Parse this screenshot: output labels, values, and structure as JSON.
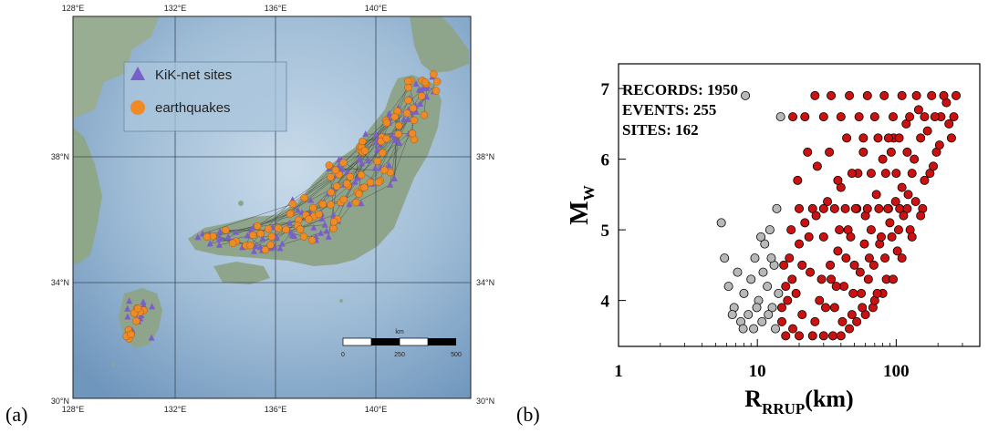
{
  "panel_a": {
    "label": "(a)",
    "lon_ticks_top": [
      "128°E",
      "132°E",
      "136°E",
      "140°E"
    ],
    "lon_ticks_bottom": [
      "128°E",
      "132°E",
      "136°E",
      "140°E"
    ],
    "lat_ticks_left": [
      "38°N",
      "34°N",
      "30°N"
    ],
    "lat_ticks_right": [
      "38°N",
      "34°N",
      "30°N"
    ],
    "legend": {
      "sites_label": "KiK-net sites",
      "quakes_label": "earthquakes"
    },
    "scalebar": {
      "unit": "km",
      "ticks": [
        "0",
        "250",
        "500"
      ]
    },
    "colors": {
      "sea": "#8fb2cf",
      "land": "#8ea58c",
      "sites": "#7b5fc9",
      "quakes": "#f08a24",
      "paths": "#333333"
    }
  },
  "panel_b": {
    "label": "(b)",
    "stats": {
      "records": "RECORDS:  1950",
      "events": "EVENTS:  255",
      "sites": "SITES:  162"
    },
    "colors": {
      "used": "#cc1111",
      "excluded": "#b8b8b8"
    }
  },
  "chart_data": {
    "type": "scatter",
    "title": "",
    "xlabel_main": "R",
    "xlabel_sub": "RRUP",
    "xlabel_unit": "(km)",
    "ylabel_main": "M",
    "ylabel_sub": "W",
    "x_scale": "log",
    "xlim": [
      1,
      400
    ],
    "ylim": [
      3.35,
      7.35
    ],
    "x_ticks": [
      1,
      10,
      100
    ],
    "x_tick_labels": [
      "1",
      "10",
      "100"
    ],
    "y_ticks": [
      4,
      5,
      6,
      7
    ],
    "y_tick_labels": [
      "4",
      "5",
      "6",
      "7"
    ],
    "grid": false,
    "series": [
      {
        "color": "#b8b8b8",
        "points": [
          [
            5.5,
            5.1
          ],
          [
            5.8,
            4.6
          ],
          [
            6.2,
            4.2
          ],
          [
            6.8,
            3.9
          ],
          [
            7.2,
            4.4
          ],
          [
            7.6,
            3.7
          ],
          [
            8.0,
            4.1
          ],
          [
            8.6,
            3.8
          ],
          [
            9.0,
            4.3
          ],
          [
            9.6,
            4.6
          ],
          [
            10.2,
            4.0
          ],
          [
            10.8,
            3.7
          ],
          [
            11.3,
            4.8
          ],
          [
            11.8,
            4.2
          ],
          [
            12.3,
            5.0
          ],
          [
            12.8,
            3.9
          ],
          [
            13.2,
            4.5
          ],
          [
            13.8,
            5.3
          ],
          [
            14.2,
            4.1
          ],
          [
            14.7,
            6.6
          ],
          [
            8.2,
            6.9
          ],
          [
            9.4,
            3.6
          ],
          [
            10.6,
            4.9
          ],
          [
            12.0,
            3.8
          ],
          [
            13.5,
            3.6
          ],
          [
            6.6,
            3.8
          ],
          [
            7.9,
            3.6
          ],
          [
            11.0,
            4.4
          ],
          [
            9.9,
            3.9
          ],
          [
            12.6,
            4.6
          ]
        ]
      },
      {
        "color": "#cc1111",
        "points": [
          [
            15,
            3.9
          ],
          [
            16,
            4.2
          ],
          [
            17,
            4.6
          ],
          [
            18,
            3.6
          ],
          [
            19,
            4.1
          ],
          [
            20,
            4.8
          ],
          [
            21,
            3.8
          ],
          [
            22,
            5.1
          ],
          [
            24,
            4.4
          ],
          [
            26,
            3.7
          ],
          [
            28,
            4.0
          ],
          [
            30,
            4.9
          ],
          [
            32,
            5.4
          ],
          [
            34,
            4.3
          ],
          [
            36,
            3.9
          ],
          [
            38,
            4.7
          ],
          [
            40,
            5.6
          ],
          [
            42,
            4.2
          ],
          [
            45,
            5.0
          ],
          [
            48,
            3.8
          ],
          [
            50,
            4.5
          ],
          [
            53,
            5.8
          ],
          [
            56,
            4.1
          ],
          [
            60,
            5.2
          ],
          [
            64,
            4.6
          ],
          [
            68,
            3.9
          ],
          [
            72,
            5.5
          ],
          [
            76,
            4.8
          ],
          [
            80,
            6.0
          ],
          [
            85,
            4.3
          ],
          [
            90,
            5.1
          ],
          [
            96,
            6.3
          ],
          [
            102,
            4.7
          ],
          [
            110,
            5.6
          ],
          [
            118,
            6.5
          ],
          [
            126,
            5.0
          ],
          [
            135,
            6.0
          ],
          [
            145,
            6.7
          ],
          [
            155,
            5.3
          ],
          [
            168,
            6.4
          ],
          [
            180,
            6.9
          ],
          [
            195,
            6.1
          ],
          [
            210,
            6.6
          ],
          [
            230,
            6.8
          ],
          [
            250,
            6.3
          ],
          [
            270,
            6.9
          ],
          [
            18,
            6.6
          ],
          [
            22,
            6.6
          ],
          [
            26,
            6.9
          ],
          [
            30,
            6.6
          ],
          [
            34,
            6.9
          ],
          [
            40,
            6.6
          ],
          [
            46,
            6.9
          ],
          [
            54,
            6.6
          ],
          [
            62,
            6.9
          ],
          [
            70,
            6.6
          ],
          [
            82,
            6.9
          ],
          [
            95,
            6.6
          ],
          [
            110,
            6.9
          ],
          [
            125,
            6.6
          ],
          [
            140,
            6.9
          ],
          [
            160,
            6.6
          ],
          [
            190,
            6.6
          ],
          [
            220,
            6.9
          ],
          [
            260,
            6.6
          ],
          [
            44,
            6.3
          ],
          [
            58,
            6.3
          ],
          [
            74,
            6.3
          ],
          [
            88,
            6.3
          ],
          [
            105,
            6.3
          ],
          [
            150,
            6.3
          ],
          [
            48,
            5.8
          ],
          [
            66,
            5.8
          ],
          [
            84,
            5.8
          ],
          [
            100,
            5.8
          ],
          [
            130,
            5.8
          ],
          [
            175,
            5.8
          ],
          [
            20,
            5.3
          ],
          [
            25,
            5.3
          ],
          [
            30,
            5.3
          ],
          [
            36,
            5.3
          ],
          [
            43,
            5.3
          ],
          [
            52,
            5.3
          ],
          [
            62,
            5.3
          ],
          [
            75,
            5.3
          ],
          [
            88,
            5.3
          ],
          [
            106,
            5.3
          ],
          [
            120,
            5.3
          ],
          [
            16,
            3.5
          ],
          [
            20,
            3.5
          ],
          [
            25,
            3.5
          ],
          [
            30,
            3.5
          ],
          [
            35,
            3.5
          ],
          [
            40,
            3.5
          ],
          [
            46,
            3.6
          ],
          [
            52,
            3.7
          ],
          [
            60,
            3.8
          ],
          [
            70,
            4.0
          ],
          [
            80,
            4.1
          ],
          [
            95,
            4.3
          ],
          [
            110,
            4.6
          ],
          [
            130,
            4.9
          ],
          [
            150,
            5.2
          ],
          [
            15.5,
            4.5
          ],
          [
            17.5,
            5.0
          ],
          [
            19.5,
            5.7
          ],
          [
            23,
            6.1
          ],
          [
            27,
            5.9
          ],
          [
            33,
            6.1
          ],
          [
            38,
            5.7
          ],
          [
            58,
            6.1
          ],
          [
            92,
            6.1
          ],
          [
            120,
            6.1
          ],
          [
            15,
            3.7
          ],
          [
            16.5,
            4.0
          ],
          [
            17.8,
            4.3
          ],
          [
            21,
            4.5
          ],
          [
            23.5,
            4.9
          ],
          [
            26.5,
            5.2
          ],
          [
            29,
            4.3
          ],
          [
            31,
            3.9
          ],
          [
            33.5,
            4.5
          ],
          [
            37,
            4.2
          ],
          [
            39,
            5.0
          ],
          [
            41,
            3.7
          ],
          [
            43.5,
            4.6
          ],
          [
            47,
            4.9
          ],
          [
            49,
            4.1
          ],
          [
            51,
            5.3
          ],
          [
            55,
            4.4
          ],
          [
            57,
            3.9
          ],
          [
            59,
            4.8
          ],
          [
            63,
            4.3
          ],
          [
            66,
            5.0
          ],
          [
            69,
            4.5
          ],
          [
            73,
            4.1
          ],
          [
            78,
            4.9
          ],
          [
            83,
            4.6
          ],
          [
            87,
            5.3
          ],
          [
            93,
            4.9
          ],
          [
            99,
            5.4
          ],
          [
            104,
            5.0
          ],
          [
            113,
            5.2
          ],
          [
            122,
            5.5
          ],
          [
            138,
            5.4
          ],
          [
            160,
            5.7
          ],
          [
            185,
            5.9
          ],
          [
            205,
            6.2
          ],
          [
            240,
            6.5
          ]
        ]
      }
    ]
  }
}
